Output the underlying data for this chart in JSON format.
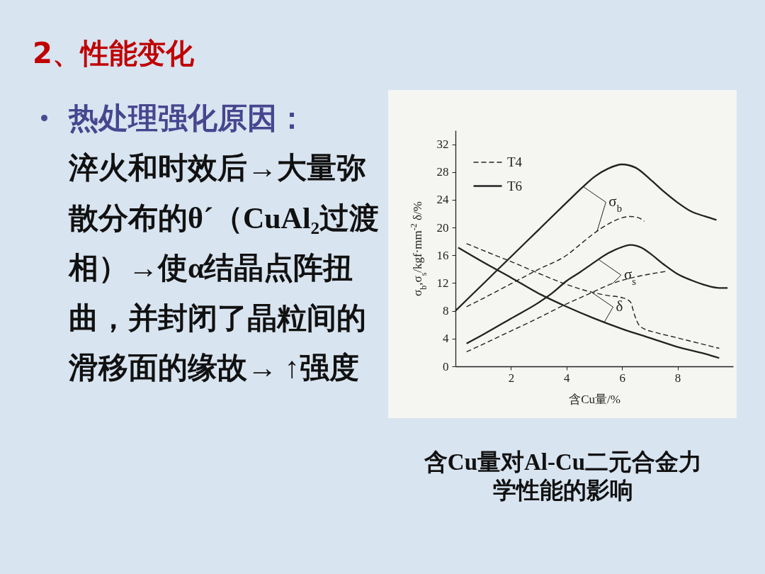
{
  "chart_data": {
    "type": "line",
    "title": "2、性能变化",
    "xlabel": "含Cu量/%",
    "ylabel": "σ$_{b}$,σ$_{s}$/kgf·mm$^{-2}$ δ/%",
    "xlim": [
      0,
      10
    ],
    "xticks": [
      2,
      4,
      6,
      8
    ],
    "ylim": [
      0,
      34
    ],
    "yticks": [
      0,
      4,
      8,
      12,
      16,
      20,
      24,
      28,
      32
    ],
    "legend": "top left",
    "annotations": [
      "热处理强化原因：",
      "淬火和时效后→大量弥散分布的θ´（CuAl₂过渡相）→使α结晶点阵扭曲，并封闭了晶粒间的滑移面的缘故→ ↑强度",
      "含Cu量对Al-Cu二元合金力学性能的影响",
      {
        "text": "σ$_{b}$",
        "x": 4.6,
        "y": 25.9
      },
      {
        "text": "σ$_{s}$",
        "x": 5.15,
        "y": 15.4
      },
      {
        "text": "δ",
        "x": 4.86,
        "y": 10.8
      }
    ],
    "series": [
      {
        "name": "T4",
        "line_style": "dashed",
        "color": "#222222",
        "x": [
          0.4,
          1,
          2,
          3,
          4,
          4.5,
          5,
          5.5,
          6,
          6.3,
          6.6,
          6.8
        ],
        "values": [
          8.6,
          9.8,
          11.9,
          14.0,
          16.0,
          17.6,
          19.2,
          20.5,
          21.4,
          21.6,
          21.4,
          20.9
        ]
      },
      {
        "name": "T6",
        "line_style": "solid",
        "color": "#222222",
        "x": [
          0,
          1,
          2,
          3,
          4,
          4.6,
          5,
          5.5,
          6,
          6.5,
          7,
          7.5,
          8,
          8.5,
          9,
          9.4
        ],
        "values": [
          8,
          11.9,
          15.8,
          19.7,
          23.6,
          25.9,
          27.3,
          28.5,
          29.1,
          28.6,
          27.0,
          25.2,
          23.6,
          22.3,
          21.6,
          21.1
        ]
      },
      {
        "line_style": "dashed",
        "color": "#222222",
        "x": [
          0.4,
          1,
          2,
          3,
          4,
          4.5,
          5,
          5.5,
          6,
          6.5,
          7,
          7.6
        ],
        "values": [
          2.1,
          3.2,
          5.1,
          7.0,
          9.0,
          9.9,
          10.8,
          11.7,
          12.4,
          12.9,
          13.3,
          13.7
        ]
      },
      {
        "line_style": "solid",
        "color": "#222222",
        "x": [
          0.4,
          1,
          2,
          3,
          3.5,
          4,
          4.5,
          5,
          5.5,
          6,
          6.3,
          6.7,
          7,
          7.5,
          8,
          8.5,
          9,
          9.5,
          9.8
        ],
        "values": [
          3.3,
          4.6,
          6.9,
          9.2,
          10.6,
          12.3,
          13.6,
          15.0,
          16.3,
          17.2,
          17.5,
          17.1,
          16.3,
          14.7,
          13.3,
          12.4,
          11.7,
          11.3,
          11.3
        ]
      },
      {
        "line_style": "dashed",
        "color": "#222222",
        "x": [
          0.4,
          1,
          2,
          3,
          4,
          5,
          5.5,
          6,
          6.3,
          6.45,
          6.6,
          6.8,
          7.2,
          8,
          9,
          9.5
        ],
        "values": [
          17.7,
          16.7,
          15.1,
          13.4,
          11.8,
          10.6,
          10.2,
          9.9,
          9.3,
          7.4,
          6.0,
          5.4,
          4.9,
          4.1,
          3.1,
          2.6
        ]
      },
      {
        "line_style": "solid",
        "color": "#222222",
        "x": [
          0.1,
          1,
          2,
          3,
          4,
          5,
          6,
          7,
          8,
          9,
          9.5
        ],
        "values": [
          17.1,
          15.0,
          12.8,
          10.5,
          8.6,
          6.9,
          5.4,
          4.1,
          2.8,
          1.8,
          1.2
        ]
      }
    ]
  }
}
